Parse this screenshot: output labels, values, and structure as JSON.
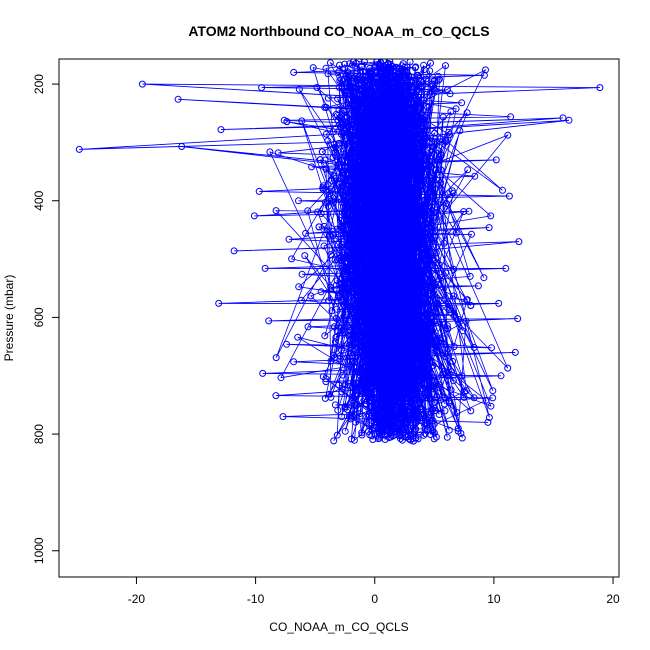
{
  "chart_data": {
    "type": "line",
    "title": "ATOM2 Northbound CO_NOAA_m_CO_QCLS",
    "xlabel": "CO_NOAA_m_CO_QCLS",
    "ylabel": "Pressure (mbar)",
    "xlim": [
      -26.5,
      20.5
    ],
    "ylim": [
      1045,
      157
    ],
    "y_reversed": true,
    "x_ticks": [
      -20,
      -10,
      0,
      10,
      20
    ],
    "y_ticks": [
      200,
      400,
      600,
      800,
      1000
    ],
    "grid": false,
    "legend": "none",
    "series_color": "#0000ff",
    "marker": "open-circle",
    "pressure_range": [
      160,
      812
    ],
    "series": [
      {
        "x": [
          -2.1,
          3.4,
          -6.8,
          9.2,
          -1.5,
          4.8,
          -9.5,
          6.1,
          0.7,
          -3.9,
          18.9,
          -19.5,
          7.3,
          -4.2,
          2.6,
          -16.5,
          11.4,
          -7.6,
          1.9,
          -12.9,
          15.8,
          -2.8,
          5.5,
          -24.8,
          16.3,
          -8.1,
          3.1,
          -0.4,
          10.2,
          -5.3,
          2.2,
          -16.2,
          8.4,
          -3.6,
          1.1,
          -9.7,
          11.3,
          -6.4,
          4.3,
          -10.1,
          7.9,
          -2.4,
          0.9,
          -5.8,
          9.6,
          -7.2,
          3.8,
          -11.8,
          12.1,
          -1.7,
          5.2,
          -9.2,
          11.0,
          -6.1,
          2.9,
          -0.8,
          8.7,
          -4.5,
          1.6,
          -13.1,
          10.4,
          -3.2,
          6.7,
          -8.9,
          12.0,
          -5.6,
          2.4,
          -1.2,
          9.8,
          -7.4,
          4.7,
          -2.9,
          11.8,
          -6.8,
          3.5,
          -9.4,
          10.6,
          -4.1,
          1.8,
          -8.3,
          9.9,
          -3.3,
          5.9,
          -7.7,
          9.5
        ],
        "y": [
          165,
          172,
          180,
          185,
          192,
          200,
          206,
          210,
          218,
          224,
          206,
          200,
          232,
          240,
          248,
          226,
          256,
          262,
          270,
          278,
          258,
          286,
          294,
          312,
          262,
          318,
          326,
          334,
          330,
          342,
          350,
          307,
          358,
          366,
          374,
          384,
          392,
          400,
          408,
          426,
          418,
          436,
          446,
          456,
          446,
          466,
          476,
          486,
          470,
          496,
          506,
          516,
          516,
          526,
          536,
          546,
          546,
          556,
          566,
          576,
          576,
          586,
          596,
          606,
          602,
          616,
          626,
          636,
          652,
          646,
          656,
          666,
          660,
          676,
          686,
          696,
          700,
          710,
          720,
          734,
          738,
          750,
          760,
          770,
          780
        ]
      }
    ]
  }
}
